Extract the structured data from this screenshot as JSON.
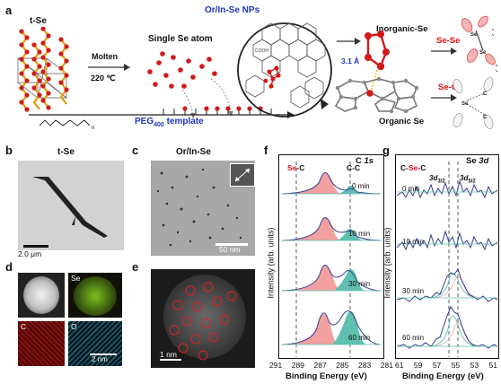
{
  "panels": {
    "a": {
      "label": "a",
      "tSe": "t-Se",
      "molten": "Molten",
      "temp": "220 ℃",
      "singleAtom": "Single Se atom",
      "peg": "PEG",
      "pegSub": "400",
      "pegSuffix": " template",
      "nps": "Or/In-Se NPs",
      "distance": "3.1 Å",
      "inorganic": "Inorganic-Se",
      "organic": "Organic Se",
      "seSe": "Se-Se",
      "seC": "Se-C"
    },
    "b": {
      "label": "b",
      "title": "t-Se",
      "scale": "2.0 μm"
    },
    "c": {
      "label": "c",
      "title": "Or/In-Se",
      "scale": "50 nm"
    },
    "d": {
      "label": "d",
      "maps": [
        "Se",
        "C",
        "O"
      ],
      "scale": "2 nm"
    },
    "e": {
      "label": "e",
      "scale": "1 nm"
    },
    "f": {
      "label": "f",
      "title_main": "C",
      "title_orb": "1s",
      "peak_left_se": "Se",
      "peak_left_c": "-C",
      "peak_right": "C-C",
      "ylabel": "Intensity (arb. units)",
      "xlabel": "Binding Energy (eV)",
      "xticks": [
        "291",
        "289",
        "287",
        "285",
        "283",
        "281"
      ],
      "times": [
        "0 min",
        "10 min",
        "30 min",
        "60 min"
      ]
    },
    "g": {
      "label": "g",
      "title_main": "Se",
      "title_orb": "3d",
      "peak_c1": "C-",
      "peak_se": "Se",
      "peak_c2": "-C",
      "d32": "3d",
      "d32sub": "3/2",
      "d52": "3d",
      "d52sub": "5/2",
      "ylabel": "Intensity (arb. units)",
      "xlabel": "Binding Energy (eV)",
      "xticks": [
        "61",
        "59",
        "57",
        "55",
        "53",
        "51"
      ],
      "times": [
        "0 min",
        "10 min",
        "30 min",
        "60 min"
      ]
    }
  },
  "colors": {
    "se_red": "#d11a1a",
    "blue": "#1a35c4",
    "pink": "#f2a0a0",
    "teal": "#5fbfb0",
    "navy": "#2f3f8f"
  }
}
